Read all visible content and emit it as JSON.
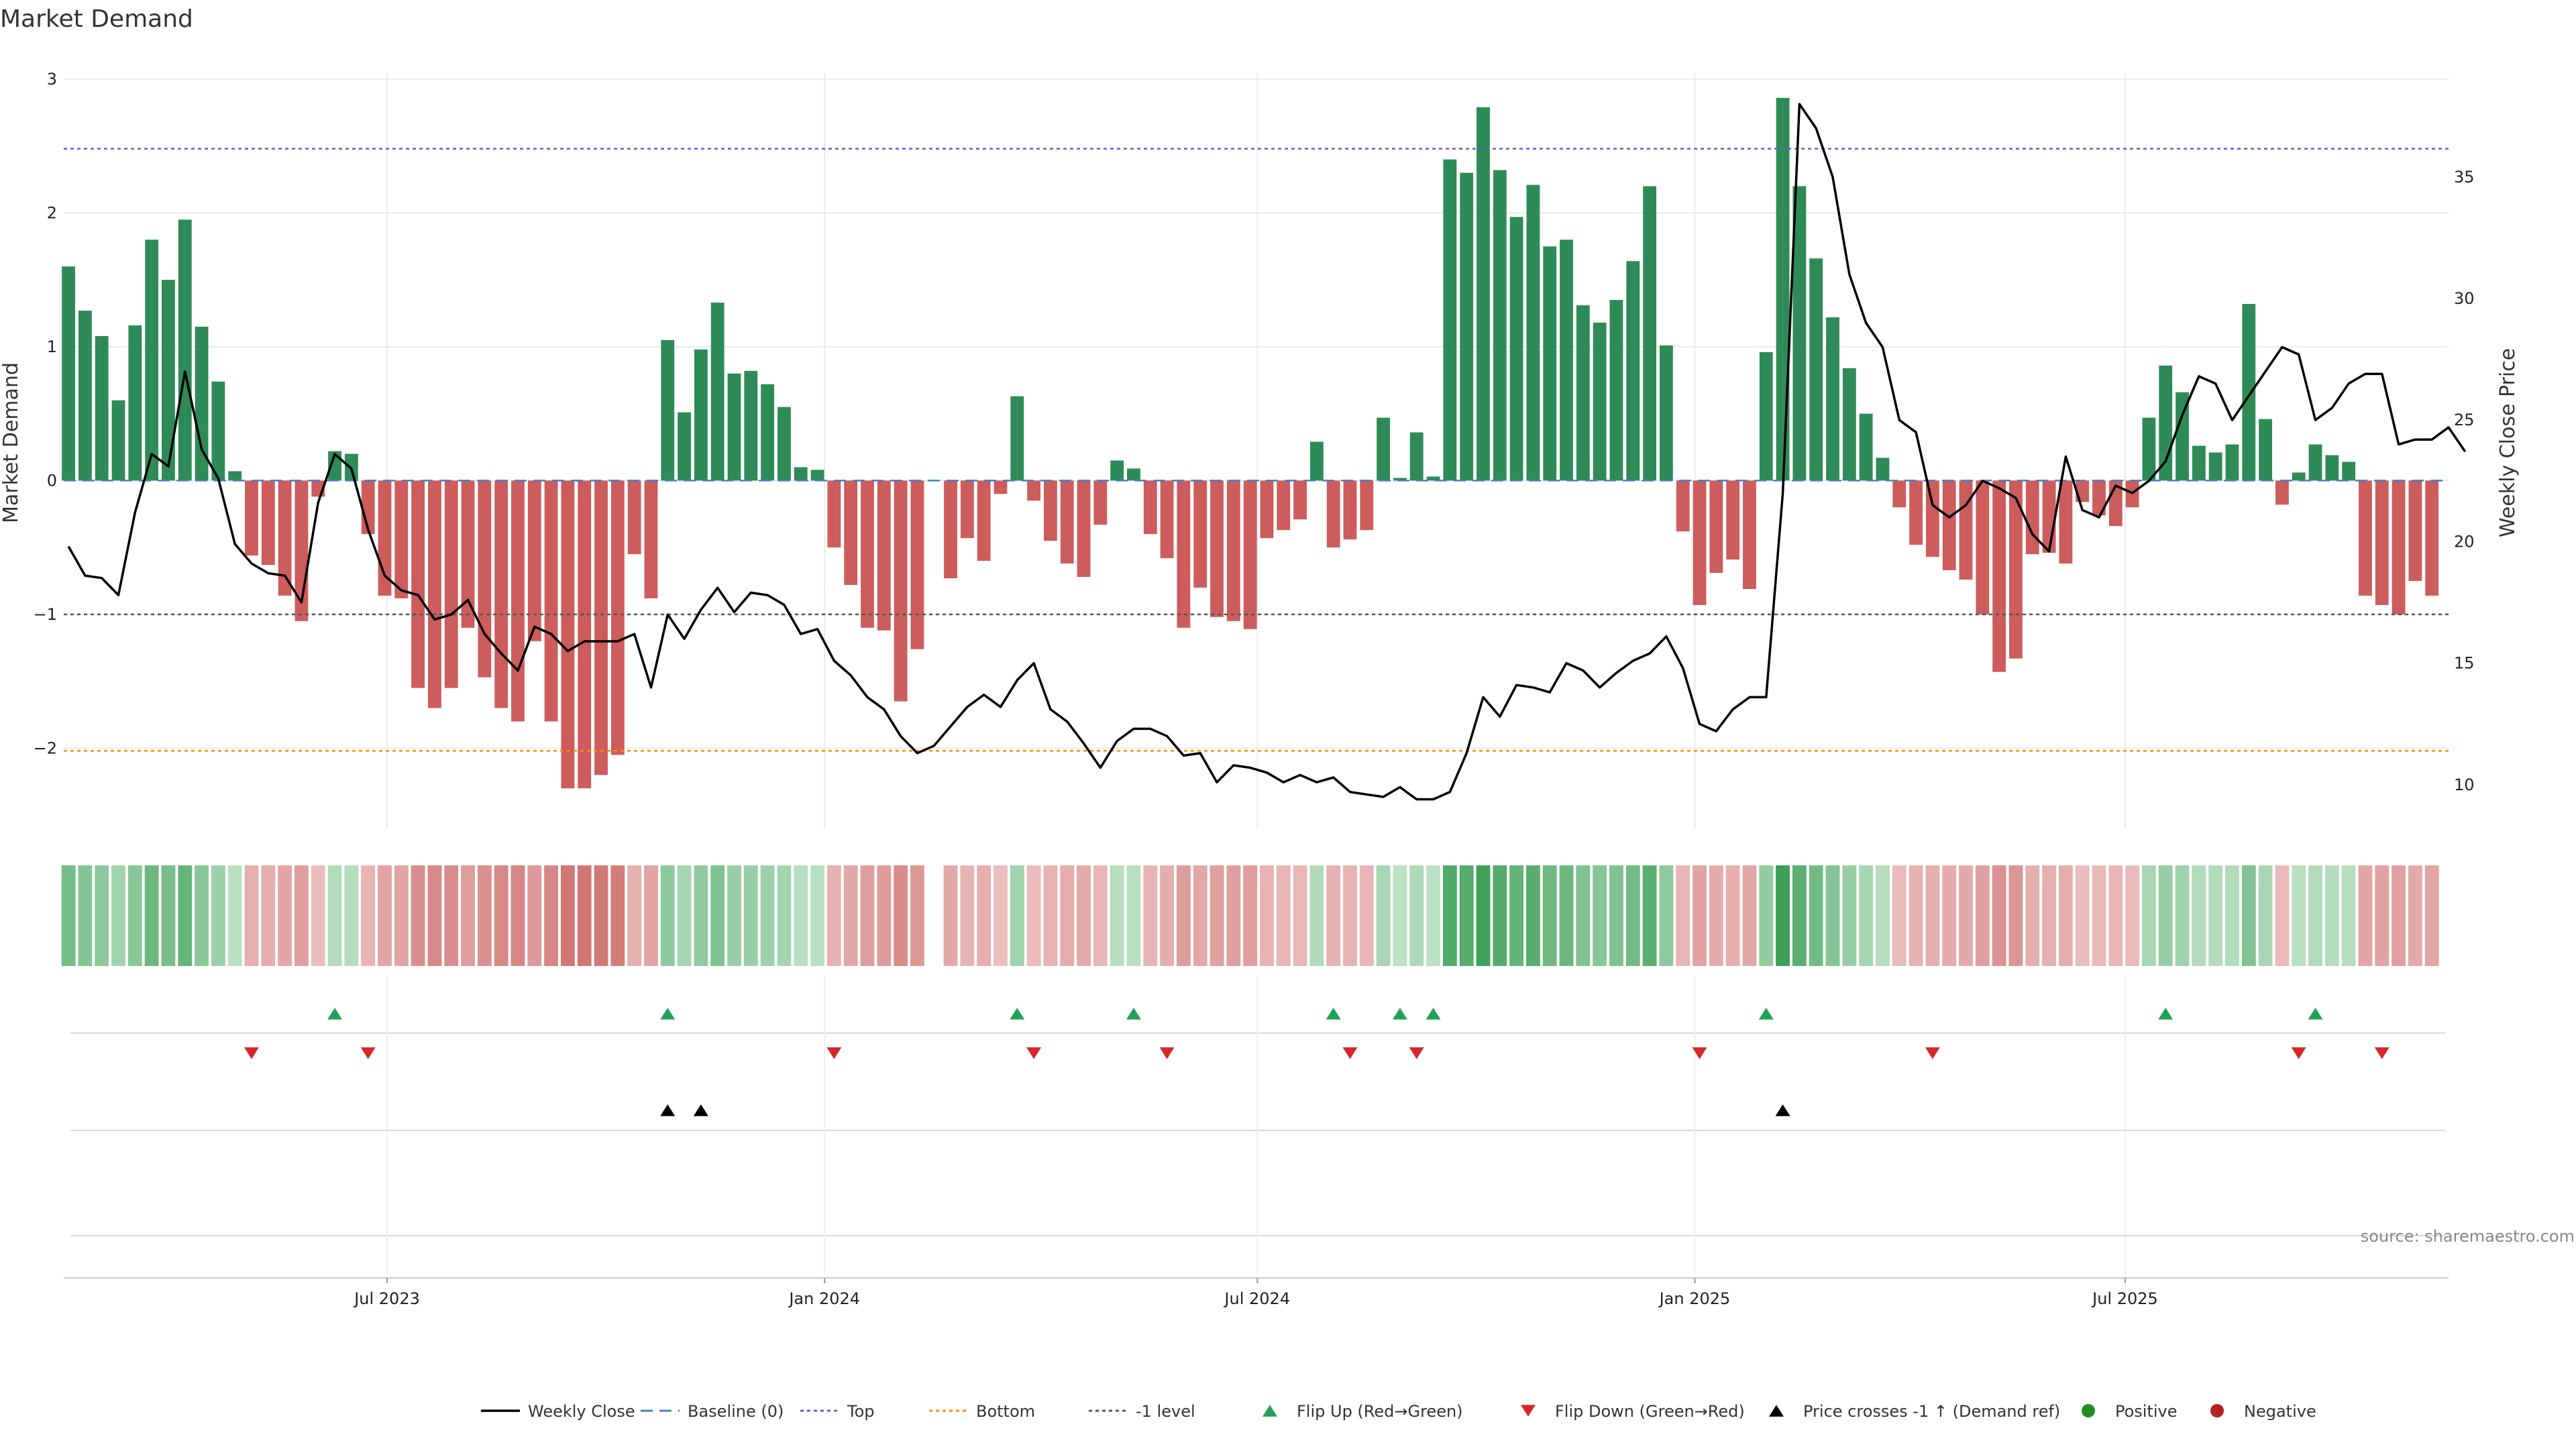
{
  "chart_data": {
    "type": "bar",
    "title": "Market Demand",
    "ylabel": "Market Demand",
    "y2label": "Weekly Close Price",
    "ylim": [
      -2.6,
      3.05
    ],
    "y2lim": [
      8.2,
      39.3
    ],
    "yticks": [
      -2,
      -1,
      0,
      1,
      2,
      3
    ],
    "y2ticks": [
      10,
      15,
      20,
      25,
      30,
      35
    ],
    "x_range": [
      "2023-02-15",
      "2025-11-14"
    ],
    "x_ticks": [
      {
        "date": "2023-07-01",
        "label": "Jul 2023"
      },
      {
        "date": "2024-01-01",
        "label": "Jan 2024"
      },
      {
        "date": "2024-07-01",
        "label": "Jul 2024"
      },
      {
        "date": "2025-01-01",
        "label": "Jan 2025"
      },
      {
        "date": "2025-07-01",
        "label": "Jul 2025"
      }
    ],
    "start_date": "2023-02-17",
    "step_days": 7,
    "series": [
      {
        "name": "Market Demand",
        "values": [
          1.6,
          1.27,
          1.08,
          0.6,
          1.16,
          1.8,
          1.5,
          1.95,
          1.15,
          0.74,
          0.07,
          -0.56,
          -0.63,
          -0.86,
          -1.05,
          -0.12,
          0.22,
          0.2,
          -0.4,
          -0.86,
          -0.88,
          -1.55,
          -1.7,
          -1.55,
          -1.1,
          -1.47,
          -1.7,
          -1.8,
          -1.2,
          -1.8,
          -2.3,
          -2.3,
          -2.2,
          -2.05,
          -0.55,
          -0.88,
          1.05,
          0.51,
          0.98,
          1.33,
          0.8,
          0.82,
          0.72,
          0.55,
          0.1,
          0.08,
          -0.5,
          -0.78,
          -1.1,
          -1.12,
          -1.65,
          -1.26,
          0,
          -0.73,
          -0.43,
          -0.6,
          -0.1,
          0.63,
          -0.15,
          -0.45,
          -0.62,
          -0.72,
          -0.33,
          0.15,
          0.09,
          -0.4,
          -0.58,
          -1.1,
          -0.8,
          -1.02,
          -1.05,
          -1.11,
          -0.43,
          -0.37,
          -0.29,
          0.29,
          -0.5,
          -0.44,
          -0.37,
          0.47,
          0.02,
          0.36,
          0.03,
          2.4,
          2.3,
          2.79,
          2.32,
          1.97,
          2.21,
          1.75,
          1.8,
          1.31,
          1.18,
          1.35,
          1.64,
          2.2,
          1.01,
          -0.38,
          -0.93,
          -0.69,
          -0.59,
          -0.81,
          0.96,
          2.86,
          2.2,
          1.66,
          1.22,
          0.84,
          0.5,
          0.17,
          -0.2,
          -0.48,
          -0.57,
          -0.67,
          -0.74,
          -1.0,
          -1.43,
          -1.33,
          -0.55,
          -0.54,
          -0.62,
          -0.16,
          -0.26,
          -0.34,
          -0.2,
          0.47,
          0.86,
          0.66,
          0.26,
          0.21,
          0.27,
          1.32,
          0.46,
          -0.18,
          0.06,
          0.27,
          0.19,
          0.14,
          -0.86,
          -0.93,
          -1.0,
          -0.75,
          -0.86
        ]
      },
      {
        "name": "Weekly Close",
        "values": [
          19.8,
          18.6,
          18.5,
          17.8,
          21.2,
          23.6,
          23.1,
          27.0,
          23.8,
          22.6,
          19.9,
          19.1,
          18.7,
          18.6,
          17.5,
          21.6,
          23.6,
          23.0,
          20.5,
          18.6,
          18.0,
          17.8,
          16.8,
          17.0,
          17.6,
          16.2,
          15.4,
          14.7,
          16.5,
          16.2,
          15.5,
          15.9,
          15.9,
          15.9,
          16.2,
          14.0,
          17.0,
          16.0,
          17.2,
          18.1,
          17.1,
          17.9,
          17.8,
          17.4,
          16.2,
          16.4,
          15.1,
          14.5,
          13.6,
          13.1,
          12.0,
          11.3,
          11.6,
          12.4,
          13.2,
          13.7,
          13.2,
          14.3,
          15.0,
          13.1,
          12.6,
          11.7,
          10.7,
          11.8,
          12.3,
          12.3,
          12.0,
          11.2,
          11.3,
          10.1,
          10.8,
          10.7,
          10.5,
          10.1,
          10.4,
          10.1,
          10.3,
          9.7,
          9.6,
          9.5,
          9.9,
          9.4,
          9.4,
          9.7,
          11.3,
          13.6,
          12.8,
          14.1,
          14.0,
          13.8,
          15.0,
          14.7,
          14.0,
          14.6,
          15.1,
          15.4,
          16.1,
          14.8,
          12.5,
          12.2,
          13.1,
          13.6,
          13.6,
          22.0,
          38.0,
          37.0,
          35.0,
          31.0,
          29.0,
          28.0,
          25.0,
          24.5,
          21.5,
          21.0,
          21.5,
          22.5,
          22.2,
          21.8,
          20.3,
          19.6,
          23.5,
          21.3,
          21.0,
          22.3,
          22.0,
          22.5,
          23.3,
          25.2,
          26.8,
          26.5,
          25.0,
          26.0,
          27.0,
          28.0,
          27.7,
          25.0,
          25.5,
          26.5,
          26.9,
          26.9,
          24.0,
          24.2,
          24.2,
          24.7,
          23.7
        ]
      }
    ],
    "colors": {
      "positive": "#2e8b57",
      "negative": "#cd5c5c",
      "line": "#000000",
      "grid": "#eaeaea",
      "top": "#6a5acd",
      "bottom": "#ff8c00",
      "level": "#555555",
      "baseline": "#4a7cc7",
      "flip_up": "#22a05a",
      "flip_down": "#d62728",
      "positive_dot": "#228b22",
      "negative_dot": "#b22222"
    },
    "reference_lines": [
      {
        "name": "Top",
        "value": 2.48
      },
      {
        "name": "Bottom",
        "value": -2.02
      },
      {
        "name": "-1 level",
        "value": -1
      }
    ],
    "flip_up_weeks": [
      16,
      36,
      57,
      64,
      76,
      80,
      82,
      102,
      126,
      135
    ],
    "flip_down_weeks": [
      11,
      18,
      46,
      58,
      66,
      77,
      81,
      98,
      112,
      134,
      139
    ],
    "price_cross_weeks": [
      36,
      38,
      103
    ],
    "legend": [
      "Weekly Close",
      "Baseline (0)",
      "Top",
      "Bottom",
      "-1 level",
      "Flip Up (Red→Green)",
      "Flip Down (Green→Red)",
      "Price crosses -1 ↑ (Demand ref)",
      "Positive",
      "Negative"
    ],
    "source": "source: sharemaestro.com"
  }
}
